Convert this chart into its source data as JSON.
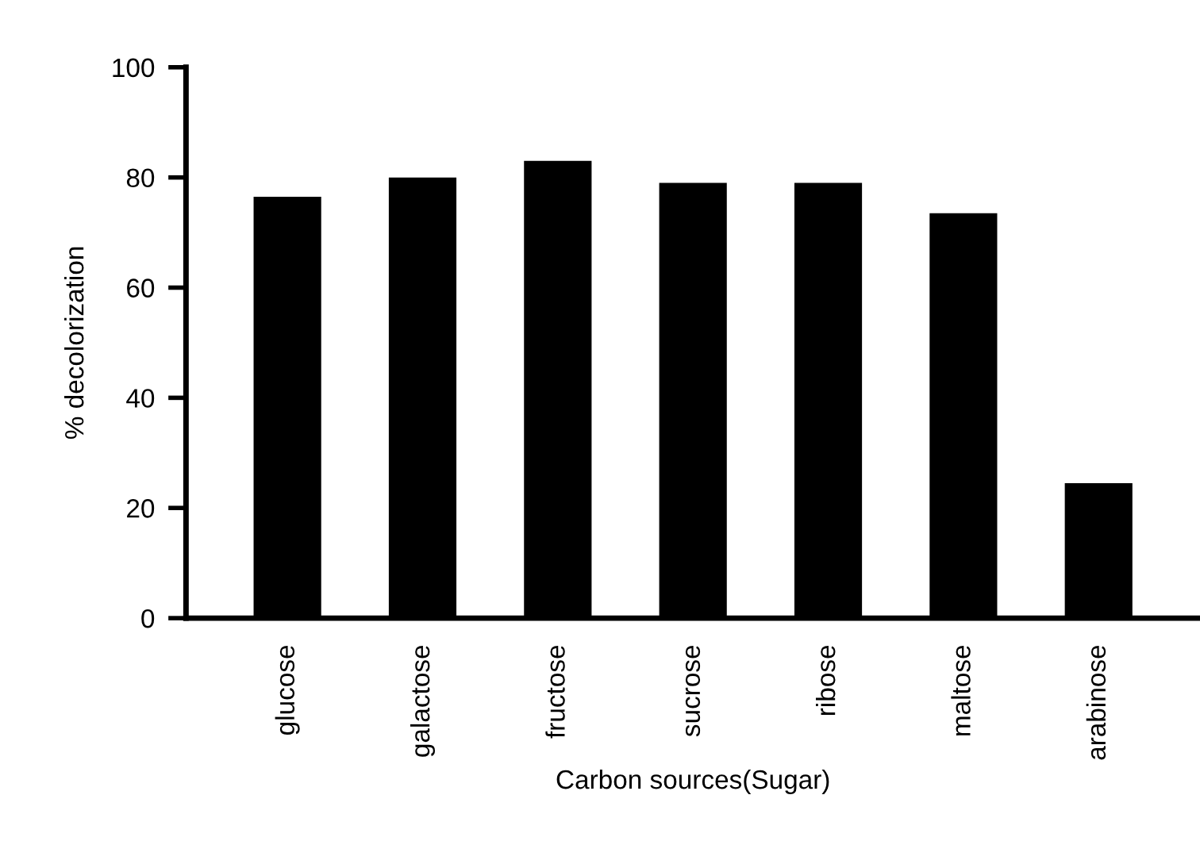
{
  "chart_data": {
    "type": "bar",
    "xlabel": "Carbon sources(Sugar)",
    "ylabel": "% decolorization",
    "categories": [
      "glucose",
      "galactose",
      "fructose",
      "sucrose",
      "ribose",
      "maltose",
      "arabinose"
    ],
    "values": [
      76.5,
      80,
      83,
      79,
      79,
      73.5,
      24.5
    ],
    "color": "#000000",
    "ylim": [
      0,
      100
    ],
    "yticks": [
      0,
      20,
      40,
      60,
      80,
      100
    ],
    "grid": false
  }
}
